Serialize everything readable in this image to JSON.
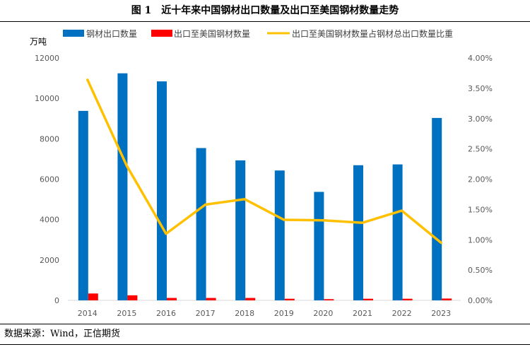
{
  "title": "图 1　近十年来中国钢材出口数量及出口至美国钢材数量走势",
  "source": "数据来源：Wind，正信期货",
  "chart_data": {
    "type": "bar+line",
    "title": "图 1　近十年来中国钢材出口数量及出口至美国钢材数量走势",
    "y_unit_label": "万吨",
    "categories": [
      "2014",
      "2015",
      "2016",
      "2017",
      "2018",
      "2019",
      "2020",
      "2021",
      "2022",
      "2023"
    ],
    "series": [
      {
        "name": "钢材出口数量",
        "type": "bar",
        "axis": "left",
        "color": "#0070c0",
        "values": [
          9380,
          11240,
          10840,
          7540,
          6930,
          6430,
          5370,
          6690,
          6730,
          9030
        ]
      },
      {
        "name": "出口至美国钢材数量",
        "type": "bar",
        "axis": "left",
        "color": "#ff0000",
        "values": [
          340,
          250,
          120,
          120,
          120,
          80,
          60,
          80,
          80,
          90
        ]
      },
      {
        "name": "出口至美国钢材数量占钢材总出口数量比重",
        "type": "line",
        "axis": "right",
        "color": "#ffc000",
        "values": [
          0.0364,
          0.0222,
          0.011,
          0.0158,
          0.0167,
          0.0133,
          0.0132,
          0.0128,
          0.0148,
          0.0095
        ]
      }
    ],
    "y_left": {
      "min": 0,
      "max": 12000,
      "ticks": [
        "0",
        "2000",
        "4000",
        "6000",
        "8000",
        "10000",
        "12000"
      ]
    },
    "y_right": {
      "min": 0,
      "max": 0.04,
      "ticks": [
        "0.00%",
        "0.50%",
        "1.00%",
        "1.50%",
        "2.00%",
        "2.50%",
        "3.00%",
        "3.50%",
        "4.00%"
      ]
    },
    "grid": false,
    "legend_position": "top"
  }
}
